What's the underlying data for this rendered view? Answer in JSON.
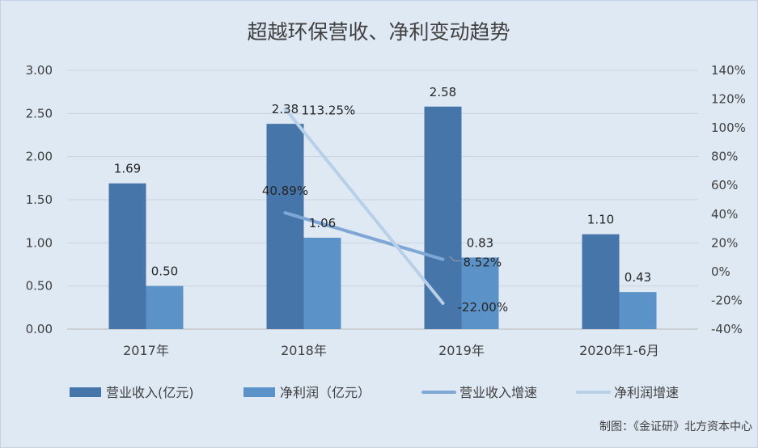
{
  "chart_data": {
    "type": "bar",
    "title": "超越环保营收、净利变动趋势",
    "categories": [
      "2017年",
      "2018年",
      "2019年",
      "2020年1-6月"
    ],
    "bar_series": [
      {
        "name": "营业收入(亿元)",
        "values": [
          1.69,
          2.38,
          2.58,
          1.1
        ],
        "labels": [
          "1.69",
          "2.38",
          "2.58",
          "1.10"
        ],
        "color": "#4676a9"
      },
      {
        "name": "净利润（亿元）",
        "values": [
          0.5,
          1.06,
          0.83,
          0.43
        ],
        "labels": [
          "0.50",
          "1.06",
          "0.83",
          "0.43"
        ],
        "color": "#5b93c9"
      }
    ],
    "line_series": [
      {
        "name": "营业收入增速",
        "values": [
          null,
          40.89,
          8.52,
          null
        ],
        "labels": [
          null,
          "40.89%",
          "8.52%",
          null
        ],
        "color": "#7ea7d6"
      },
      {
        "name": "净利润增速",
        "values": [
          null,
          113.25,
          -22.0,
          null
        ],
        "labels": [
          null,
          "113.25%",
          "-22.00%",
          null
        ],
        "color": "#b8cfe8"
      }
    ],
    "y_left": {
      "min": 0,
      "max": 3,
      "ticks": [
        "0.00",
        "0.50",
        "1.00",
        "1.50",
        "2.00",
        "2.50",
        "3.00"
      ]
    },
    "y_right": {
      "min": -40,
      "max": 140,
      "ticks": [
        "-40%",
        "-20%",
        "0%",
        "20%",
        "40%",
        "60%",
        "80%",
        "100%",
        "120%",
        "140%"
      ]
    },
    "grid": true,
    "legend_position": "bottom",
    "source": "制图：《金证研》北方资本中心"
  }
}
